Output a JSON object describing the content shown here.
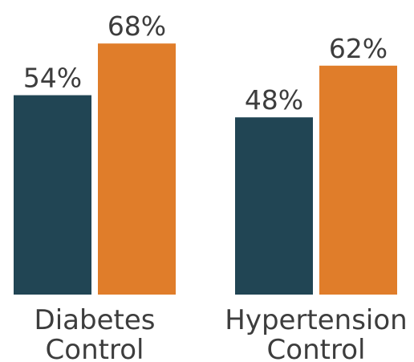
{
  "chart_data": {
    "type": "bar",
    "categories": [
      [
        "Diabetes",
        "Control"
      ],
      [
        "Hypertension",
        "Control"
      ]
    ],
    "series": [
      {
        "values": [
          54,
          48
        ],
        "labels": [
          "54%",
          "48%"
        ],
        "color": "#214554"
      },
      {
        "values": [
          68,
          62
        ],
        "labels": [
          "68%",
          "62%"
        ],
        "color": "#e07d2a"
      }
    ],
    "ylim": [
      0,
      100
    ],
    "grid": false,
    "legend": "none"
  }
}
